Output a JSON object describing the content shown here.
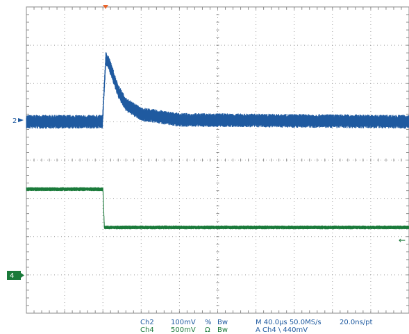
{
  "chart_data": {
    "type": "line",
    "title": "",
    "xlabel": "",
    "ylabel": "",
    "grid": true,
    "divisions": {
      "x": 10,
      "y": 8
    },
    "x_unit": "µs",
    "xlim": [
      -80,
      320
    ],
    "series": [
      {
        "channel": "2",
        "color": "#1f5aa0",
        "volts_per_div": 0.1,
        "ground_div": 5,
        "ripple_mV": 18,
        "points": [
          [
            -80,
            0
          ],
          [
            -0.5,
            0
          ],
          [
            0,
            0.02
          ],
          [
            3,
            0.165
          ],
          [
            6,
            0.155
          ],
          [
            10,
            0.125
          ],
          [
            16,
            0.08
          ],
          [
            24,
            0.045
          ],
          [
            40,
            0.02
          ],
          [
            80,
            0.005
          ],
          [
            320,
            0
          ]
        ]
      },
      {
        "channel": "4",
        "color": "#1a7a3a",
        "volts_per_div": 0.5,
        "ground_div": 1,
        "ripple_mV": 25,
        "points": [
          [
            -80,
            1.12
          ],
          [
            0,
            1.12
          ],
          [
            1.5,
            0.62
          ],
          [
            320,
            0.62
          ]
        ]
      }
    ]
  },
  "markers": {
    "ch2_label": "2",
    "ch4_label": "4",
    "right_arrow": "←"
  },
  "readout": {
    "ch2_name": "Ch2",
    "ch2_scale": "100mV",
    "ch2_coupling": "%",
    "ch2_bw": "Bw",
    "ch4_name": "Ch4",
    "ch4_scale": "500mV",
    "ch4_coupling": "Ω",
    "ch4_bw": "Bw",
    "horizontal": "M 40.0µs 50.0MS/s",
    "record": "20.0ns/pt",
    "trigger": "A  Ch4  \\  440mV"
  }
}
